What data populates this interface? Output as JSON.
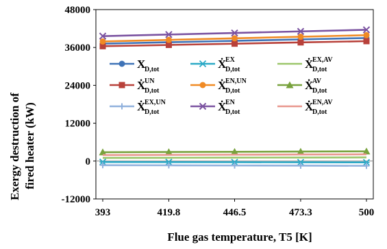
{
  "chart_data": {
    "type": "line",
    "xlabel": "Flue gas temperature, T5 [K]",
    "ylabel_lines": [
      "Exergy destruction of",
      "fired heater (kW)"
    ],
    "x": [
      393,
      419.8,
      446.5,
      473.3,
      500
    ],
    "x_tick_labels": [
      "393",
      "419.8",
      "446.5",
      "473.3",
      "500"
    ],
    "ylim": [
      -12000,
      48000
    ],
    "y_ticks": [
      -12000,
      0,
      12000,
      24000,
      36000,
      48000
    ],
    "y_tick_labels": [
      "-12000",
      "0",
      "12000",
      "24000",
      "36000",
      "48000"
    ],
    "grid": false,
    "legend_position": "inside, upper-middle",
    "series": [
      {
        "name": "X_D,tot",
        "sym": "X",
        "sup": "",
        "sub": "D,tot",
        "color": "#3f73b7",
        "marker": "circle",
        "values": [
          37200,
          37650,
          38100,
          38550,
          39000
        ]
      },
      {
        "name": "X_D,tot^EX",
        "sym": "Ẋ",
        "sup": "EX",
        "sub": "D,tot",
        "color": "#2ba9c6",
        "marker": "star",
        "values": [
          -300,
          -330,
          -360,
          -390,
          -420
        ]
      },
      {
        "name": "X_D,tot^EX,AV",
        "sym": "Ẋ",
        "sup": "EX,AV",
        "sub": "D,tot",
        "color": "#9bc66a",
        "marker": "none",
        "values": [
          1000,
          1040,
          1080,
          1120,
          1160
        ]
      },
      {
        "name": "X_D,tot^UN",
        "sym": "Ẋ",
        "sup": "UN",
        "sub": "D,tot",
        "color": "#b8413a",
        "marker": "square",
        "values": [
          36400,
          36800,
          37200,
          37600,
          38000
        ]
      },
      {
        "name": "X_D,tot^EN,UN",
        "sym": "Ẋ",
        "sup": "EN,UN",
        "sub": "D,tot",
        "color": "#f08a24",
        "marker": "circle",
        "values": [
          37900,
          38400,
          38900,
          39400,
          39900
        ]
      },
      {
        "name": "X_D,tot^AV",
        "sym": "Ẋ",
        "sup": "AV",
        "sub": "D,tot",
        "color": "#78a23d",
        "marker": "triangle",
        "values": [
          2800,
          2870,
          2940,
          3010,
          3080
        ]
      },
      {
        "name": "X_D,tot^EX,UN",
        "sym": "Ẋ",
        "sup": "EX,UN",
        "sub": "D,tot",
        "color": "#8fb0dc",
        "marker": "plus",
        "values": [
          -1300,
          -1350,
          -1400,
          -1450,
          -1500
        ]
      },
      {
        "name": "X_D,tot^EN",
        "sym": "Ẋ",
        "sup": "EN",
        "sub": "D,tot",
        "color": "#7a52a0",
        "marker": "x",
        "values": [
          39600,
          40100,
          40600,
          41100,
          41600
        ]
      },
      {
        "name": "X_D,tot^EN,AV",
        "sym": "Ẋ",
        "sup": "EN,AV",
        "sub": "D,tot",
        "color": "#e8968c",
        "marker": "none",
        "values": [
          1900,
          1960,
          2020,
          2080,
          2140
        ]
      }
    ]
  }
}
